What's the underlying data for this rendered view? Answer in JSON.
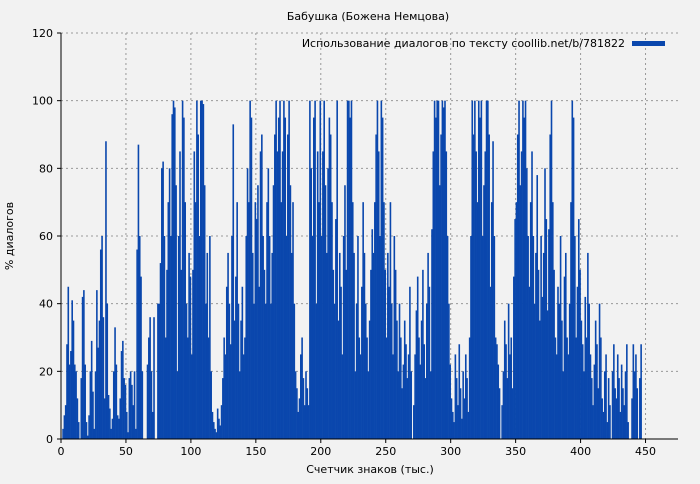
{
  "chart_data": {
    "type": "bar",
    "title": "Бабушка (Божена Немцова)",
    "xlabel": "Счетчик знаков (тыс.)",
    "ylabel": "% диалогов",
    "xlim": [
      0,
      475
    ],
    "ylim": [
      0,
      120
    ],
    "xticks": [
      0,
      50,
      100,
      150,
      200,
      250,
      300,
      350,
      400,
      450
    ],
    "yticks": [
      0,
      20,
      40,
      60,
      80,
      100,
      120
    ],
    "grid": true,
    "legend_position": "top-right",
    "series": [
      {
        "name": "Использование диалогов по тексту coollib.net/b/781822",
        "color": "#0a47ad",
        "values": [
          0,
          3,
          7,
          10,
          28,
          45,
          22,
          26,
          41,
          35,
          22,
          20,
          12,
          5,
          0,
          18,
          42,
          44,
          22,
          5,
          1,
          7,
          20,
          29,
          14,
          3,
          20,
          44,
          27,
          35,
          56,
          60,
          36,
          12,
          88,
          40,
          13,
          9,
          3,
          6,
          20,
          33,
          22,
          7,
          6,
          12,
          26,
          29,
          18,
          16,
          8,
          2,
          18,
          20,
          16,
          10,
          20,
          3,
          56,
          87,
          60,
          48,
          20,
          0,
          0,
          0,
          22,
          30,
          36,
          20,
          8,
          36,
          0,
          0,
          40,
          40,
          52,
          80,
          82,
          60,
          30,
          50,
          70,
          80,
          60,
          96,
          100,
          98,
          75,
          20,
          60,
          85,
          50,
          100,
          95,
          70,
          40,
          30,
          55,
          48,
          25,
          50,
          85,
          70,
          100,
          90,
          60,
          100,
          100,
          99,
          75,
          40,
          55,
          30,
          60,
          20,
          8,
          5,
          3,
          2,
          9,
          6,
          4,
          10,
          18,
          30,
          25,
          45,
          55,
          40,
          28,
          60,
          93,
          35,
          48,
          70,
          40,
          20,
          35,
          45,
          25,
          30,
          60,
          80,
          70,
          100,
          95,
          55,
          40,
          70,
          65,
          75,
          45,
          85,
          90,
          60,
          50,
          40,
          70,
          80,
          60,
          40,
          55,
          75,
          90,
          100,
          85,
          95,
          100,
          70,
          85,
          100,
          95,
          60,
          90,
          100,
          75,
          55,
          70,
          40,
          20,
          15,
          8,
          12,
          25,
          30,
          18,
          10,
          20,
          15,
          10,
          100,
          80,
          60,
          95,
          100,
          40,
          85,
          70,
          100,
          60,
          85,
          100,
          75,
          55,
          80,
          95,
          90,
          70,
          50,
          40,
          65,
          100,
          35,
          55,
          45,
          25,
          60,
          75,
          50,
          100,
          100,
          95,
          100,
          70,
          55,
          20,
          40,
          60,
          30,
          25,
          45,
          70,
          55,
          40,
          30,
          20,
          35,
          50,
          62,
          55,
          70,
          90,
          100,
          85,
          60,
          100,
          95,
          70,
          50,
          30,
          55,
          45,
          70,
          40,
          25,
          60,
          50,
          35,
          20,
          40,
          30,
          15,
          22,
          35,
          28,
          18,
          25,
          45,
          20,
          0,
          10,
          25,
          38,
          48,
          30,
          22,
          35,
          50,
          28,
          18,
          40,
          55,
          45,
          20,
          62,
          85,
          100,
          95,
          100,
          100,
          75,
          90,
          100,
          98,
          100,
          85,
          60,
          40,
          22,
          12,
          8,
          5,
          25,
          18,
          10,
          28,
          15,
          6,
          20,
          12,
          25,
          18,
          8,
          30,
          60,
          100,
          90,
          100,
          85,
          70,
          100,
          95,
          100,
          60,
          75,
          85,
          100,
          100,
          90,
          45,
          70,
          88,
          60,
          30,
          28,
          22,
          15,
          0,
          10,
          20,
          35,
          28,
          18,
          40,
          25,
          30,
          15,
          48,
          65,
          70,
          90,
          100,
          75,
          85,
          100,
          95,
          100,
          80,
          60,
          45,
          70,
          85,
          60,
          40,
          55,
          78,
          50,
          35,
          60,
          42,
          55,
          80,
          65,
          38,
          62,
          90,
          100,
          70,
          50,
          30,
          25,
          45,
          40,
          60,
          35,
          20,
          48,
          55,
          30,
          25,
          40,
          70,
          100,
          95,
          60,
          30,
          45,
          65,
          50,
          35,
          28,
          20,
          42,
          30,
          55,
          40,
          25,
          18,
          10,
          22,
          35,
          28,
          15,
          40,
          30,
          12,
          8,
          20,
          25,
          5,
          18,
          10,
          0,
          20,
          28,
          15,
          12,
          25,
          18,
          8,
          22,
          15,
          10,
          20,
          28,
          5,
          0,
          0,
          12,
          28,
          20,
          25,
          15,
          0,
          18,
          28
        ]
      }
    ]
  }
}
